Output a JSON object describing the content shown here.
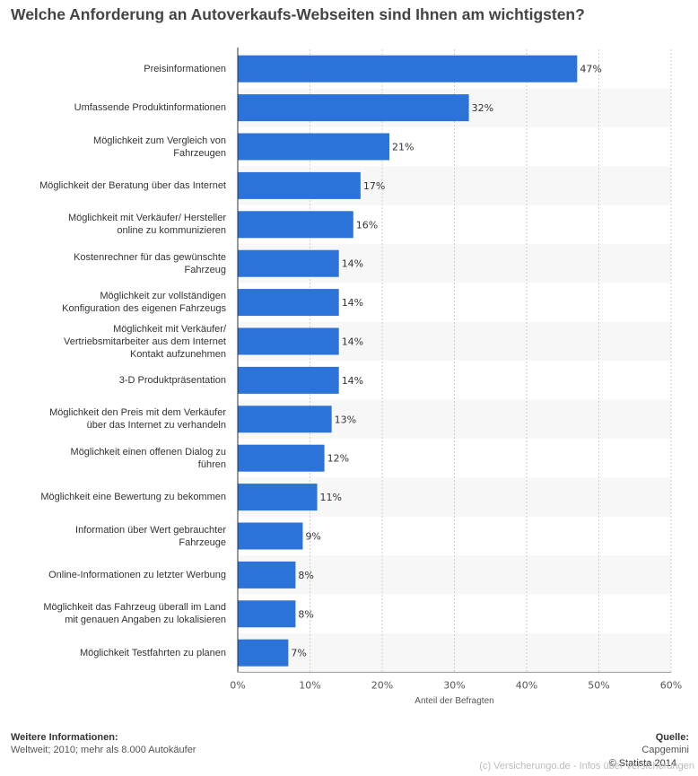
{
  "title": "Welche Anforderung an Autoverkaufs-Webseiten sind Ihnen am wichtigsten?",
  "chart_data": {
    "type": "bar",
    "orientation": "horizontal",
    "categories": [
      "Preisinformationen",
      "Umfassende Produktinformationen",
      "Möglichkeit zum Vergleich von\nFahrzeugen",
      "Möglichkeit der Beratung über das Internet",
      "Möglichkeit mit Verkäufer/ Hersteller\nonline zu kommunizieren",
      "Kostenrechner für das gewünschte\nFahrzeug",
      "Möglichkeit zur vollständigen\nKonfiguration des eigenen Fahrzeugs",
      "Möglichkeit mit Verkäufer/\nVertriebsmitarbeiter aus dem Internet\nKontakt aufzunehmen",
      "3-D Produktpräsentation",
      "Möglichkeit den Preis mit dem Verkäufer\nüber das Internet zu verhandeln",
      "Möglichkeit einen offenen Dialog zu\nführen",
      "Möglichkeit eine Bewertung zu bekommen",
      "Information über Wert gebrauchter\nFahrzeuge",
      "Online-Informationen zu letzter Werbung",
      "Möglichkeit das Fahrzeug überall im Land\nmit genauen Angaben zu lokalisieren",
      "Möglichkeit Testfahrten zu planen"
    ],
    "values": [
      47,
      32,
      21,
      17,
      16,
      14,
      14,
      14,
      14,
      13,
      12,
      11,
      9,
      8,
      8,
      7
    ],
    "value_labels": [
      "47%",
      "32%",
      "21%",
      "17%",
      "16%",
      "14%",
      "14%",
      "14%",
      "14%",
      "13%",
      "12%",
      "11%",
      "9%",
      "8%",
      "8%",
      "7%"
    ],
    "xlim": [
      0,
      60
    ],
    "xticks": [
      "0%",
      "10%",
      "20%",
      "30%",
      "40%",
      "50%",
      "60%"
    ],
    "xlabel": "Anteil der Befragten",
    "ylabel": "",
    "grid": true,
    "bar_color": "#2b72d9",
    "stripe_color": "#f7f7f7"
  },
  "footer": {
    "info_title": "Weitere Informationen:",
    "info_text": "Weltweit; 2010; mehr als 8.000 Autokäufer",
    "source_title": "Quelle:",
    "source_text": "Capgemini",
    "copyright": "© Statista 2014",
    "watermark": "(c) Versicherungo.de - Infos über Versicherungen"
  }
}
